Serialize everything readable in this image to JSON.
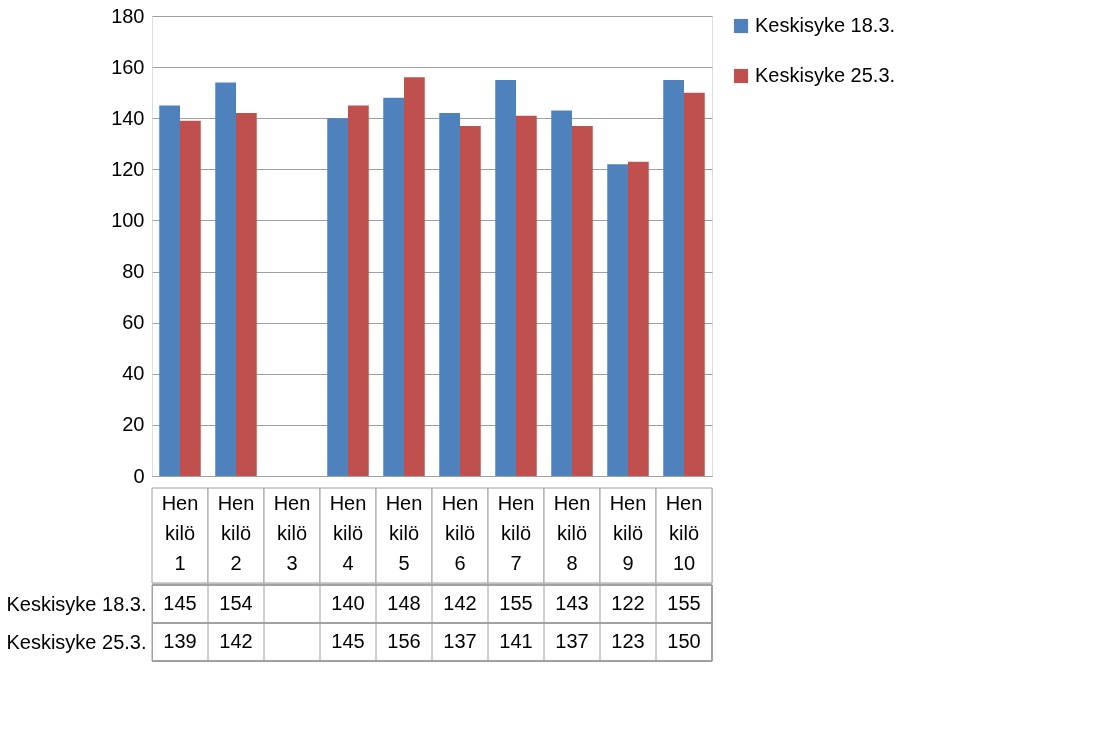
{
  "chart_data": {
    "type": "bar",
    "categories": [
      "Henkilö 1",
      "Henkilö 2",
      "Henkilö 3",
      "Henkilö 4",
      "Henkilö 5",
      "Henkilö 6",
      "Henkilö 7",
      "Henkilö 8",
      "Henkilö 9",
      "Henkilö 10"
    ],
    "series": [
      {
        "name": "Keskisyke 18.3.",
        "color": "#4f81bd",
        "values": [
          145,
          154,
          null,
          140,
          148,
          142,
          155,
          143,
          122,
          155
        ]
      },
      {
        "name": "Keskisyke 25.3.",
        "color": "#c0504d",
        "values": [
          139,
          142,
          null,
          145,
          156,
          137,
          141,
          137,
          123,
          150
        ]
      }
    ],
    "ylim": [
      0,
      180
    ],
    "yticks": [
      0,
      20,
      40,
      60,
      80,
      100,
      120,
      140,
      160,
      180
    ],
    "grid": "y",
    "legend": "right",
    "data_labels": true
  }
}
